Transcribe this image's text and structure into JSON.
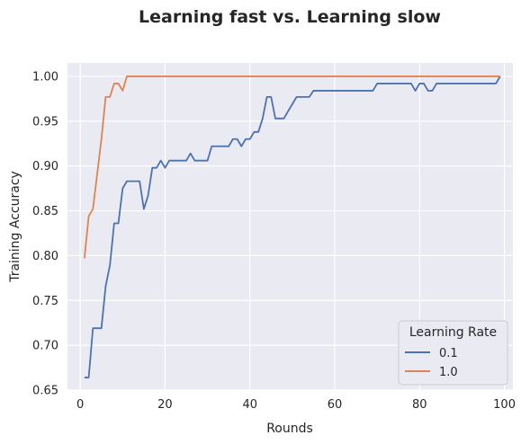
{
  "chart_data": {
    "type": "line",
    "title": "Learning fast vs. Learning slow",
    "xlabel": "Rounds",
    "ylabel": "Training Accuracy",
    "xlim": [
      -3,
      102
    ],
    "ylim": [
      0.65,
      1.015
    ],
    "xticks": [
      0,
      20,
      40,
      60,
      80,
      100
    ],
    "yticks": [
      0.65,
      0.7,
      0.75,
      0.8,
      0.85,
      0.9,
      0.95,
      1.0
    ],
    "xtick_labels": [
      "0",
      "20",
      "40",
      "60",
      "80",
      "100"
    ],
    "ytick_labels": [
      "0.65",
      "0.70",
      "0.75",
      "0.80",
      "0.85",
      "0.90",
      "0.95",
      "1.00"
    ],
    "grid": true,
    "legend": {
      "title": "Learning Rate",
      "placement": "lower-right"
    },
    "series": [
      {
        "name": "0.1",
        "color": "#4c72b0",
        "points": [
          [
            1,
            0.664
          ],
          [
            2,
            0.664
          ],
          [
            3,
            0.719
          ],
          [
            4,
            0.719
          ],
          [
            5,
            0.719
          ],
          [
            6,
            0.766
          ],
          [
            7,
            0.789
          ],
          [
            8,
            0.836
          ],
          [
            9,
            0.836
          ],
          [
            10,
            0.875
          ],
          [
            11,
            0.883
          ],
          [
            12,
            0.883
          ],
          [
            13,
            0.883
          ],
          [
            14,
            0.883
          ],
          [
            15,
            0.852
          ],
          [
            16,
            0.867
          ],
          [
            17,
            0.898
          ],
          [
            18,
            0.898
          ],
          [
            19,
            0.906
          ],
          [
            20,
            0.898
          ],
          [
            21,
            0.906
          ],
          [
            22,
            0.906
          ],
          [
            23,
            0.906
          ],
          [
            24,
            0.906
          ],
          [
            25,
            0.906
          ],
          [
            26,
            0.914
          ],
          [
            27,
            0.906
          ],
          [
            28,
            0.906
          ],
          [
            29,
            0.906
          ],
          [
            30,
            0.906
          ],
          [
            31,
            0.922
          ],
          [
            32,
            0.922
          ],
          [
            33,
            0.922
          ],
          [
            34,
            0.922
          ],
          [
            35,
            0.922
          ],
          [
            36,
            0.93
          ],
          [
            37,
            0.93
          ],
          [
            38,
            0.922
          ],
          [
            39,
            0.93
          ],
          [
            40,
            0.93
          ],
          [
            41,
            0.938
          ],
          [
            42,
            0.938
          ],
          [
            43,
            0.953
          ],
          [
            44,
            0.977
          ],
          [
            45,
            0.977
          ],
          [
            46,
            0.953
          ],
          [
            47,
            0.953
          ],
          [
            48,
            0.953
          ],
          [
            49,
            0.961
          ],
          [
            50,
            0.969
          ],
          [
            51,
            0.977
          ],
          [
            52,
            0.977
          ],
          [
            53,
            0.977
          ],
          [
            54,
            0.977
          ],
          [
            55,
            0.984
          ],
          [
            60,
            0.984
          ],
          [
            65,
            0.984
          ],
          [
            68,
            0.984
          ],
          [
            69,
            0.984
          ],
          [
            70,
            0.992
          ],
          [
            75,
            0.992
          ],
          [
            78,
            0.992
          ],
          [
            79,
            0.984
          ],
          [
            80,
            0.992
          ],
          [
            81,
            0.992
          ],
          [
            82,
            0.984
          ],
          [
            83,
            0.984
          ],
          [
            84,
            0.992
          ],
          [
            90,
            0.992
          ],
          [
            97,
            0.992
          ],
          [
            98,
            0.992
          ],
          [
            99,
            1.0
          ]
        ]
      },
      {
        "name": "1.0",
        "color": "#dd8452",
        "points": [
          [
            1,
            0.797
          ],
          [
            2,
            0.844
          ],
          [
            3,
            0.852
          ],
          [
            4,
            0.891
          ],
          [
            5,
            0.93
          ],
          [
            6,
            0.977
          ],
          [
            7,
            0.977
          ],
          [
            8,
            0.992
          ],
          [
            9,
            0.992
          ],
          [
            10,
            0.984
          ],
          [
            11,
            1.0
          ],
          [
            20,
            1.0
          ],
          [
            40,
            1.0
          ],
          [
            60,
            1.0
          ],
          [
            80,
            1.0
          ],
          [
            99,
            1.0
          ]
        ]
      }
    ]
  }
}
